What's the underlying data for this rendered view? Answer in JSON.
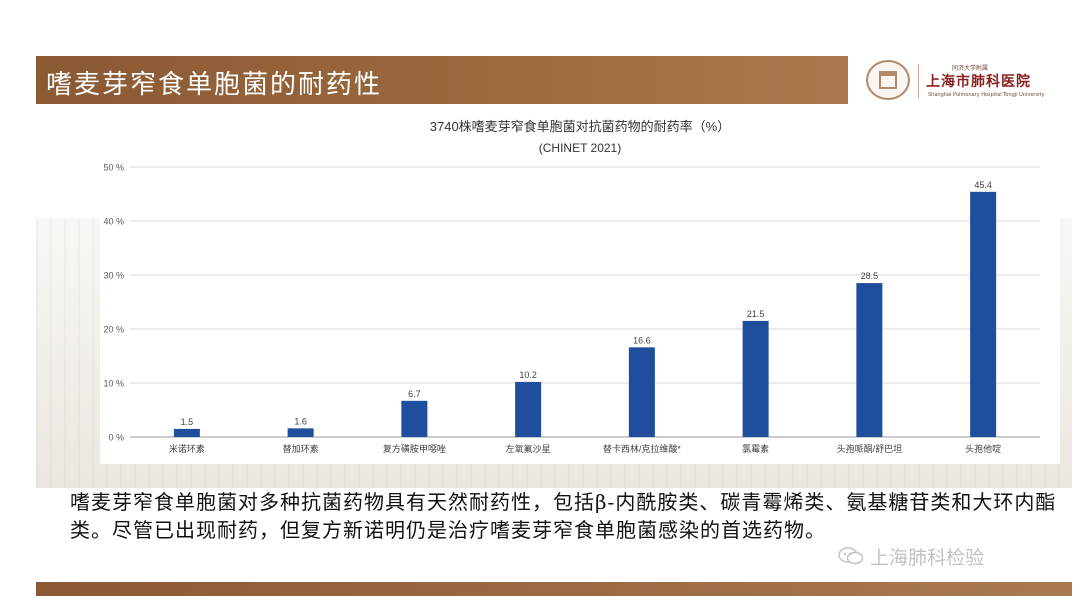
{
  "slide": {
    "title": "嗜麦芽窄食单胞菌的耐药性",
    "description": "嗜麦芽窄食单胞菌对多种抗菌药物具有天然耐药性，包括β-内酰胺类、碳青霉烯类、氨基糖苷类和大环内酯类。尽管已出现耐药，但复方新诺明仍是治疗嗜麦芽窄食单胞菌感染的首选药物。",
    "logo": {
      "line1": "同济大学附属",
      "name": "上海市肺科医院",
      "line3": "Shanghai Pulmonary Hospital Tongji University"
    },
    "watermark": "上海肺科检验",
    "colors": {
      "header": "#9d6a3f",
      "bar": "#1f4e9c",
      "hospital_name": "#8a1f1f"
    }
  },
  "chart_data": {
    "type": "bar",
    "title": "3740株嗜麦芽窄食单胞菌对抗菌药物的耐药率（%）",
    "subtitle": "(CHINET 2021)",
    "categories": [
      "米诺环素",
      "替加环素",
      "复方磺胺甲噁唑",
      "左氧氟沙星",
      "替卡西林/克拉维酸*",
      "氯霉素",
      "头孢哌酮/舒巴坦",
      "头孢他啶"
    ],
    "values": [
      1.5,
      1.6,
      6.7,
      10.2,
      16.6,
      21.5,
      28.5,
      45.4
    ],
    "value_labels": [
      "1.5",
      "1.6",
      "6.7",
      "10.2",
      "16.6",
      "21.5",
      "28.5",
      "45.4"
    ],
    "ylim": [
      0,
      50
    ],
    "yticks": [
      0,
      10,
      20,
      30,
      40,
      50
    ],
    "ytick_labels": [
      "0 %",
      "10 %",
      "20 %",
      "30 %",
      "40 %",
      "50 %"
    ],
    "grid": true,
    "legend": "none",
    "xlabel": "",
    "ylabel": ""
  }
}
